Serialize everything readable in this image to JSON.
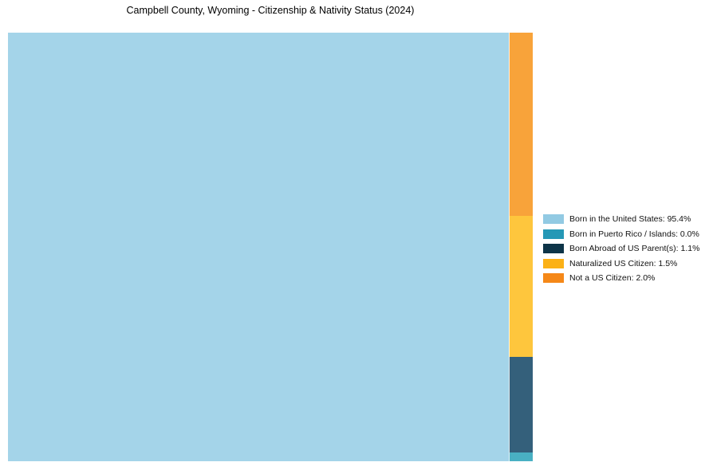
{
  "chart_data": {
    "type": "treemap",
    "title": "Campbell County, Wyoming - Citizenship & Nativity Status (2024)",
    "legend_position": "right",
    "categories": [
      {
        "label": "Born in the United States",
        "value_pct": 95.4,
        "legend_color": "#92cae3",
        "block_color": "#a4d4e9"
      },
      {
        "label": "Born in Puerto Rico / Islands",
        "value_pct": 0.0,
        "legend_color": "#2598b6",
        "block_color": "#49b0c3"
      },
      {
        "label": "Born Abroad of US Parent(s)",
        "value_pct": 1.1,
        "legend_color": "#0d3448",
        "block_color": "#34607b"
      },
      {
        "label": "Naturalized US Citizen",
        "value_pct": 1.5,
        "legend_color": "#fbb116",
        "block_color": "#fec63d"
      },
      {
        "label": "Not a US Citizen",
        "value_pct": 2.0,
        "legend_color": "#f58818",
        "block_color": "#f8a33a"
      }
    ]
  }
}
